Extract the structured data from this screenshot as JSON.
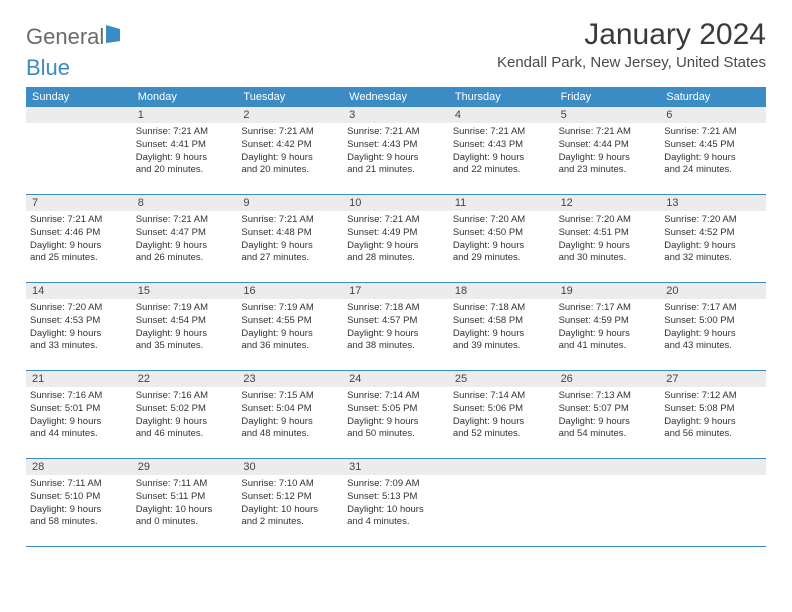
{
  "brand": {
    "part1": "General",
    "part2": "Blue"
  },
  "title": "January 2024",
  "location": "Kendall Park, New Jersey, United States",
  "colors": {
    "accent": "#3b8bc4",
    "day_bg": "#ececec",
    "text": "#333333",
    "heading": "#3a3a3a",
    "border": "#3b8bc4",
    "background": "#ffffff"
  },
  "layout": {
    "type": "calendar",
    "columns": 7,
    "first_day_column": 1
  },
  "weekdays": [
    "Sunday",
    "Monday",
    "Tuesday",
    "Wednesday",
    "Thursday",
    "Friday",
    "Saturday"
  ],
  "days": [
    {
      "n": "1",
      "sunrise": "7:21 AM",
      "sunset": "4:41 PM",
      "daylight": "9 hours and 20 minutes."
    },
    {
      "n": "2",
      "sunrise": "7:21 AM",
      "sunset": "4:42 PM",
      "daylight": "9 hours and 20 minutes."
    },
    {
      "n": "3",
      "sunrise": "7:21 AM",
      "sunset": "4:43 PM",
      "daylight": "9 hours and 21 minutes."
    },
    {
      "n": "4",
      "sunrise": "7:21 AM",
      "sunset": "4:43 PM",
      "daylight": "9 hours and 22 minutes."
    },
    {
      "n": "5",
      "sunrise": "7:21 AM",
      "sunset": "4:44 PM",
      "daylight": "9 hours and 23 minutes."
    },
    {
      "n": "6",
      "sunrise": "7:21 AM",
      "sunset": "4:45 PM",
      "daylight": "9 hours and 24 minutes."
    },
    {
      "n": "7",
      "sunrise": "7:21 AM",
      "sunset": "4:46 PM",
      "daylight": "9 hours and 25 minutes."
    },
    {
      "n": "8",
      "sunrise": "7:21 AM",
      "sunset": "4:47 PM",
      "daylight": "9 hours and 26 minutes."
    },
    {
      "n": "9",
      "sunrise": "7:21 AM",
      "sunset": "4:48 PM",
      "daylight": "9 hours and 27 minutes."
    },
    {
      "n": "10",
      "sunrise": "7:21 AM",
      "sunset": "4:49 PM",
      "daylight": "9 hours and 28 minutes."
    },
    {
      "n": "11",
      "sunrise": "7:20 AM",
      "sunset": "4:50 PM",
      "daylight": "9 hours and 29 minutes."
    },
    {
      "n": "12",
      "sunrise": "7:20 AM",
      "sunset": "4:51 PM",
      "daylight": "9 hours and 30 minutes."
    },
    {
      "n": "13",
      "sunrise": "7:20 AM",
      "sunset": "4:52 PM",
      "daylight": "9 hours and 32 minutes."
    },
    {
      "n": "14",
      "sunrise": "7:20 AM",
      "sunset": "4:53 PM",
      "daylight": "9 hours and 33 minutes."
    },
    {
      "n": "15",
      "sunrise": "7:19 AM",
      "sunset": "4:54 PM",
      "daylight": "9 hours and 35 minutes."
    },
    {
      "n": "16",
      "sunrise": "7:19 AM",
      "sunset": "4:55 PM",
      "daylight": "9 hours and 36 minutes."
    },
    {
      "n": "17",
      "sunrise": "7:18 AM",
      "sunset": "4:57 PM",
      "daylight": "9 hours and 38 minutes."
    },
    {
      "n": "18",
      "sunrise": "7:18 AM",
      "sunset": "4:58 PM",
      "daylight": "9 hours and 39 minutes."
    },
    {
      "n": "19",
      "sunrise": "7:17 AM",
      "sunset": "4:59 PM",
      "daylight": "9 hours and 41 minutes."
    },
    {
      "n": "20",
      "sunrise": "7:17 AM",
      "sunset": "5:00 PM",
      "daylight": "9 hours and 43 minutes."
    },
    {
      "n": "21",
      "sunrise": "7:16 AM",
      "sunset": "5:01 PM",
      "daylight": "9 hours and 44 minutes."
    },
    {
      "n": "22",
      "sunrise": "7:16 AM",
      "sunset": "5:02 PM",
      "daylight": "9 hours and 46 minutes."
    },
    {
      "n": "23",
      "sunrise": "7:15 AM",
      "sunset": "5:04 PM",
      "daylight": "9 hours and 48 minutes."
    },
    {
      "n": "24",
      "sunrise": "7:14 AM",
      "sunset": "5:05 PM",
      "daylight": "9 hours and 50 minutes."
    },
    {
      "n": "25",
      "sunrise": "7:14 AM",
      "sunset": "5:06 PM",
      "daylight": "9 hours and 52 minutes."
    },
    {
      "n": "26",
      "sunrise": "7:13 AM",
      "sunset": "5:07 PM",
      "daylight": "9 hours and 54 minutes."
    },
    {
      "n": "27",
      "sunrise": "7:12 AM",
      "sunset": "5:08 PM",
      "daylight": "9 hours and 56 minutes."
    },
    {
      "n": "28",
      "sunrise": "7:11 AM",
      "sunset": "5:10 PM",
      "daylight": "9 hours and 58 minutes."
    },
    {
      "n": "29",
      "sunrise": "7:11 AM",
      "sunset": "5:11 PM",
      "daylight": "10 hours and 0 minutes."
    },
    {
      "n": "30",
      "sunrise": "7:10 AM",
      "sunset": "5:12 PM",
      "daylight": "10 hours and 2 minutes."
    },
    {
      "n": "31",
      "sunrise": "7:09 AM",
      "sunset": "5:13 PM",
      "daylight": "10 hours and 4 minutes."
    }
  ],
  "labels": {
    "sunrise": "Sunrise:",
    "sunset": "Sunset:",
    "daylight": "Daylight:"
  }
}
